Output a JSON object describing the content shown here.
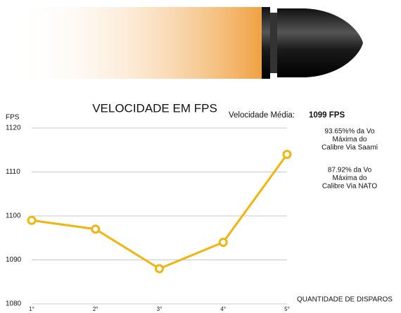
{
  "chart_data": {
    "type": "line",
    "title": "VELOCIDADE EM FPS",
    "y_label": "FPS",
    "x_label": "QUANTIDADE DE DISPAROS",
    "average_label": "Velocidade Média:",
    "average_value": "1099 FPS",
    "notes": [
      [
        "93.65%% da Vo",
        "Máxima do",
        "Calibre Via Saami"
      ],
      [
        "87.92% da Vo",
        "Máxima do",
        "Calibre Via NATO"
      ]
    ],
    "categories": [
      "1°",
      "2°",
      "3°",
      "4°",
      "5°"
    ],
    "values": [
      1099,
      1097,
      1088,
      1094,
      1114
    ],
    "color": "#f2b50f",
    "ylim": [
      1080,
      1120
    ],
    "yticks": [
      1080,
      1090,
      1100,
      1110,
      1120
    ],
    "grid": true
  }
}
